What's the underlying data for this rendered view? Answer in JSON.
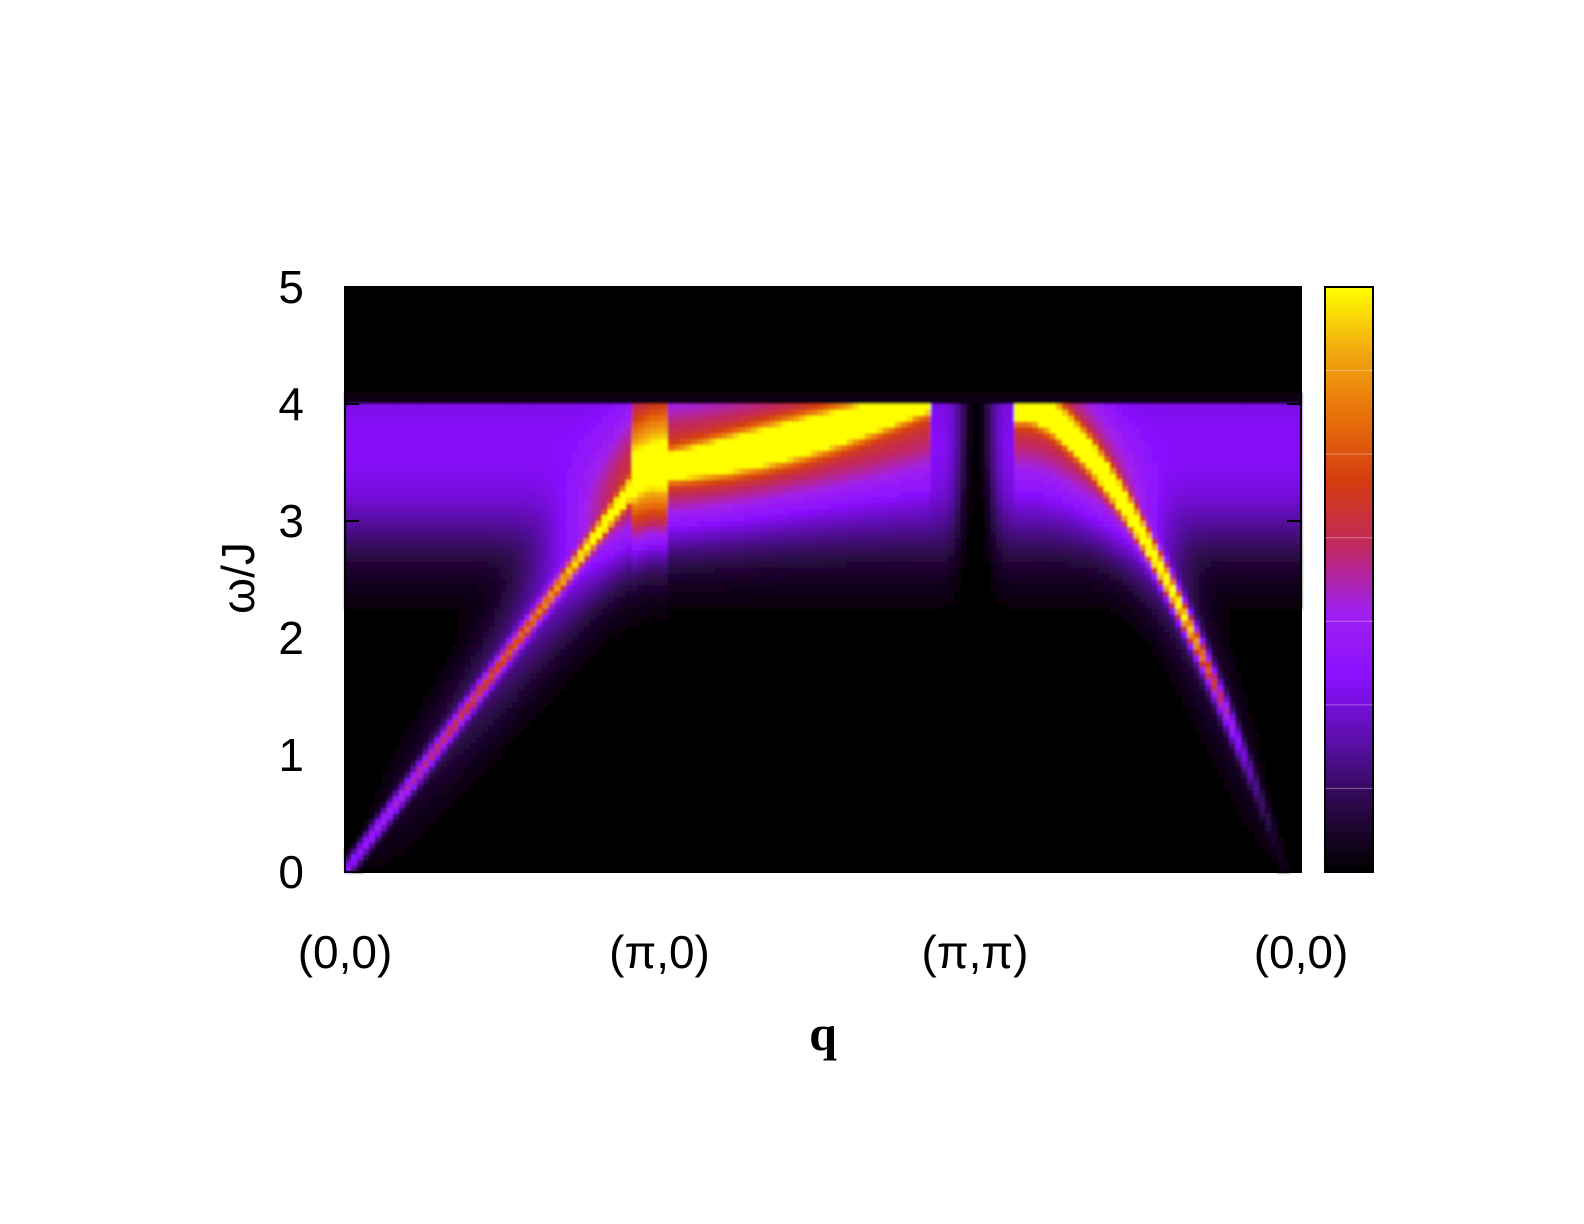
{
  "chart_data": {
    "type": "heatmap",
    "title": "",
    "xlabel": "q",
    "ylabel": "ω/J",
    "x_ticks": [
      "(0,0)",
      "(π,0)",
      "(π,π)",
      "(0,0)"
    ],
    "y_ticks": [
      "0",
      "1",
      "2",
      "3",
      "4",
      "5"
    ],
    "ylim": [
      0,
      5
    ],
    "colorbar": {
      "ticks": 7,
      "colormap": [
        "#000000",
        "#2a0845",
        "#5a0fa8",
        "#8a10ff",
        "#a020f0",
        "#c02860",
        "#d43c10",
        "#e8700a",
        "#f2a810",
        "#ffff00"
      ]
    },
    "features": [
      {
        "name": "magnon branch (0,0)-(π,0)",
        "omega_peak": 3.5,
        "intensity": "high"
      },
      {
        "name": "magnon branch (π,0)-(π,π)",
        "omega_peak": 3.75,
        "intensity": "max"
      },
      {
        "name": "magnon branch (π,π)-(0,0)",
        "omega_peak": 3.1,
        "intensity": "max"
      },
      {
        "name": "continuum upper edge",
        "omega": 4.0
      }
    ]
  }
}
